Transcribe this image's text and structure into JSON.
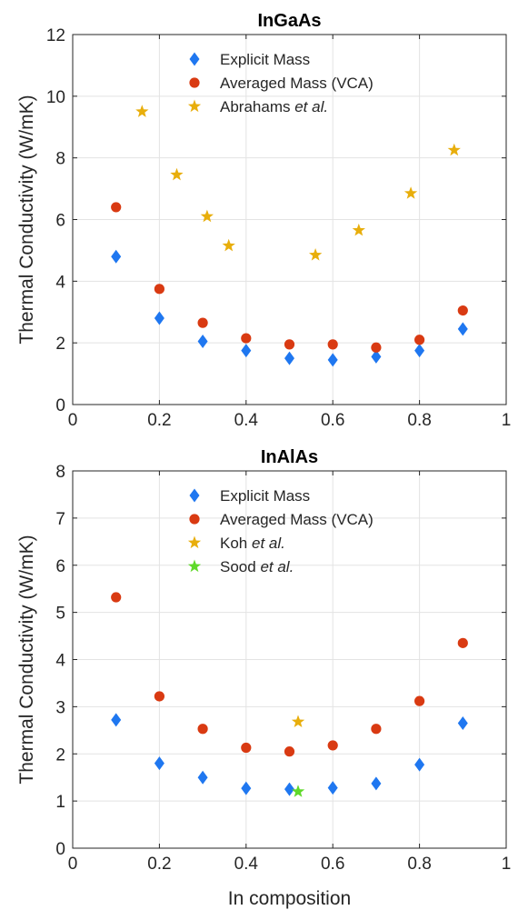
{
  "chart_data": [
    {
      "type": "scatter",
      "title": "InGaAs",
      "xlabel": "",
      "ylabel": "Thermal Conductivity (W/mK)",
      "xlim": [
        0,
        1
      ],
      "ylim": [
        0,
        12
      ],
      "xticks": [
        "0",
        "0.2",
        "0.4",
        "0.6",
        "0.8",
        "1"
      ],
      "yticks": [
        "0",
        "2",
        "4",
        "6",
        "8",
        "10",
        "12"
      ],
      "grid": true,
      "legend_position": "top-center",
      "series": [
        {
          "name": "Explicit Mass",
          "marker": "diamond",
          "color": "#1f77f0",
          "x": [
            0.1,
            0.2,
            0.3,
            0.4,
            0.5,
            0.6,
            0.7,
            0.8,
            0.9
          ],
          "y": [
            4.8,
            2.8,
            2.05,
            1.75,
            1.5,
            1.45,
            1.55,
            1.75,
            2.45
          ]
        },
        {
          "name": "Averaged Mass (VCA)",
          "marker": "circle",
          "color": "#d93a12",
          "x": [
            0.1,
            0.2,
            0.3,
            0.4,
            0.5,
            0.6,
            0.7,
            0.8,
            0.9
          ],
          "y": [
            6.4,
            3.75,
            2.65,
            2.15,
            1.95,
            1.95,
            1.85,
            2.1,
            3.05
          ]
        },
        {
          "name": "Abrahams",
          "name_suffix": "et al.",
          "marker": "star",
          "color": "#e8ae0c",
          "x": [
            0.16,
            0.24,
            0.31,
            0.36,
            0.56,
            0.66,
            0.78,
            0.88
          ],
          "y": [
            9.5,
            7.45,
            6.1,
            5.15,
            4.85,
            5.65,
            6.85,
            8.25
          ]
        }
      ]
    },
    {
      "type": "scatter",
      "title": "InAlAs",
      "xlabel": "In composition",
      "ylabel": "Thermal Conductivity (W/mK)",
      "xlim": [
        0,
        1
      ],
      "ylim": [
        0,
        8
      ],
      "xticks": [
        "0",
        "0.2",
        "0.4",
        "0.6",
        "0.8",
        "1"
      ],
      "yticks": [
        "0",
        "1",
        "2",
        "3",
        "4",
        "5",
        "6",
        "7",
        "8"
      ],
      "grid": true,
      "legend_position": "top-center",
      "series": [
        {
          "name": "Explicit Mass",
          "marker": "diamond",
          "color": "#1f77f0",
          "x": [
            0.1,
            0.2,
            0.3,
            0.4,
            0.5,
            0.6,
            0.7,
            0.8,
            0.9
          ],
          "y": [
            2.72,
            1.8,
            1.5,
            1.27,
            1.25,
            1.28,
            1.37,
            1.77,
            2.65
          ]
        },
        {
          "name": "Averaged Mass (VCA)",
          "marker": "circle",
          "color": "#d93a12",
          "x": [
            0.1,
            0.2,
            0.3,
            0.4,
            0.5,
            0.6,
            0.7,
            0.8,
            0.9
          ],
          "y": [
            5.32,
            3.22,
            2.53,
            2.13,
            2.05,
            2.18,
            2.53,
            3.12,
            4.35
          ]
        },
        {
          "name": "Koh",
          "name_suffix": "et al.",
          "marker": "star",
          "color": "#e8ae0c",
          "x": [
            0.52
          ],
          "y": [
            2.68
          ]
        },
        {
          "name": "Sood",
          "name_suffix": "et al.",
          "marker": "star",
          "color": "#5fd92a",
          "x": [
            0.52
          ],
          "y": [
            1.2
          ]
        }
      ]
    }
  ]
}
